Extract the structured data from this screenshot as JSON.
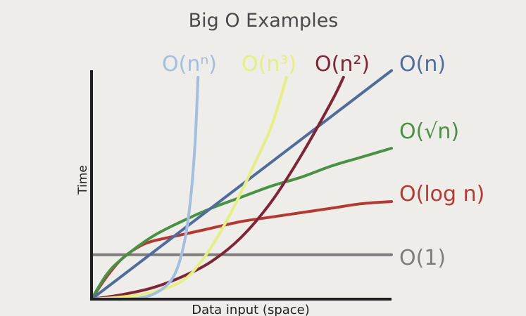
{
  "chart_data": {
    "type": "line",
    "title": "Big O Examples",
    "xlabel": "Data input (space)",
    "ylabel": "Time",
    "grid": false,
    "legend": "inline labels at curve ends",
    "series": [
      {
        "name": "O(1)",
        "color": "#7d7d7d",
        "points": [
          [
            0,
            0.2
          ],
          [
            1,
            0.2
          ]
        ]
      },
      {
        "name": "O(log n)",
        "color": "#b23a32",
        "points": [
          [
            0.0,
            0.0
          ],
          [
            0.05,
            0.1
          ],
          [
            0.1,
            0.18
          ],
          [
            0.15,
            0.23
          ],
          [
            0.2,
            0.26
          ],
          [
            0.3,
            0.29
          ],
          [
            0.4,
            0.32
          ],
          [
            0.5,
            0.35
          ],
          [
            0.6,
            0.37
          ],
          [
            0.7,
            0.39
          ],
          [
            0.8,
            0.41
          ],
          [
            0.9,
            0.43
          ],
          [
            1.0,
            0.44
          ]
        ]
      },
      {
        "name": "O(√n)",
        "color": "#4a9146",
        "points": [
          [
            0.0,
            0.0
          ],
          [
            0.05,
            0.11
          ],
          [
            0.1,
            0.18
          ],
          [
            0.2,
            0.28
          ],
          [
            0.3,
            0.35
          ],
          [
            0.4,
            0.41
          ],
          [
            0.5,
            0.46
          ],
          [
            0.6,
            0.51
          ],
          [
            0.7,
            0.55
          ],
          [
            0.8,
            0.6
          ],
          [
            0.9,
            0.64
          ],
          [
            1.0,
            0.68
          ]
        ]
      },
      {
        "name": "O(n)",
        "color": "#4f6c9b",
        "points": [
          [
            0.0,
            0.0
          ],
          [
            1.0,
            1.03
          ]
        ]
      },
      {
        "name": "O(n²)",
        "color": "#7e2637",
        "points": [
          [
            0.0,
            0.0
          ],
          [
            0.1,
            0.02
          ],
          [
            0.2,
            0.05
          ],
          [
            0.3,
            0.1
          ],
          [
            0.4,
            0.17
          ],
          [
            0.5,
            0.28
          ],
          [
            0.6,
            0.44
          ],
          [
            0.7,
            0.65
          ],
          [
            0.8,
            0.89
          ],
          [
            0.84,
            1.0
          ]
        ]
      },
      {
        "name": "O(n³)",
        "color": "#e6ee84",
        "points": [
          [
            0.0,
            0.0
          ],
          [
            0.1,
            0.01
          ],
          [
            0.2,
            0.03
          ],
          [
            0.3,
            0.08
          ],
          [
            0.36,
            0.16
          ],
          [
            0.42,
            0.28
          ],
          [
            0.48,
            0.43
          ],
          [
            0.54,
            0.6
          ],
          [
            0.6,
            0.78
          ],
          [
            0.65,
            1.0
          ]
        ]
      },
      {
        "name": "O(nⁿ)",
        "color": "#a3bedf",
        "points": [
          [
            0.0,
            0.0
          ],
          [
            0.1,
            0.0
          ],
          [
            0.18,
            0.01
          ],
          [
            0.24,
            0.05
          ],
          [
            0.28,
            0.12
          ],
          [
            0.31,
            0.26
          ],
          [
            0.33,
            0.45
          ],
          [
            0.345,
            0.7
          ],
          [
            0.355,
            1.0
          ]
        ]
      }
    ]
  }
}
